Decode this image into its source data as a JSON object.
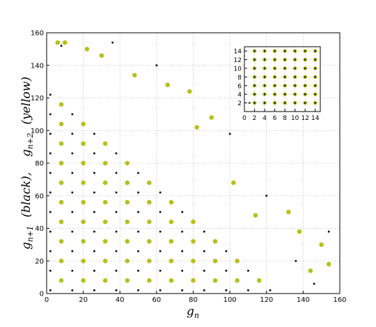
{
  "chart_data": [
    {
      "type": "scatter",
      "xlim": [
        0,
        160
      ],
      "ylim": [
        0,
        160
      ],
      "xticks": [
        0,
        20,
        40,
        60,
        80,
        100,
        120,
        140,
        160
      ],
      "yticks": [
        0,
        20,
        40,
        60,
        80,
        100,
        120,
        140,
        160
      ],
      "grid": true,
      "x_label": {
        "base": "g",
        "sub": "n"
      },
      "y_label": [
        {
          "base": "g",
          "sub": "n+1",
          "note": "(black),"
        },
        {
          "base": "g",
          "sub": "n+2",
          "note": "(yellow)"
        }
      ],
      "series": [
        {
          "name": "g_{n+2}",
          "color": "#b8bf1a",
          "marker": "circle",
          "x": [
            8,
            8,
            8,
            8,
            8,
            8,
            8,
            8,
            8,
            8,
            20,
            20,
            20,
            20,
            20,
            20,
            20,
            20,
            20,
            32,
            32,
            32,
            32,
            32,
            32,
            32,
            32,
            44,
            44,
            44,
            44,
            44,
            44,
            44,
            56,
            56,
            56,
            56,
            56,
            56,
            68,
            68,
            68,
            68,
            68,
            80,
            80,
            80,
            80,
            92,
            92,
            92,
            104,
            104,
            116,
            6,
            10,
            22,
            30,
            48,
            66,
            78,
            82,
            90,
            102,
            114,
            132,
            138,
            150,
            154,
            144
          ],
          "y": [
            8,
            20,
            32,
            44,
            56,
            68,
            80,
            92,
            104,
            116,
            8,
            20,
            32,
            44,
            56,
            68,
            80,
            92,
            104,
            8,
            20,
            32,
            44,
            56,
            68,
            80,
            92,
            8,
            20,
            32,
            44,
            56,
            68,
            80,
            8,
            20,
            32,
            44,
            56,
            68,
            8,
            20,
            32,
            44,
            56,
            8,
            20,
            32,
            44,
            8,
            20,
            32,
            8,
            20,
            8,
            154,
            154,
            150,
            146,
            134,
            128,
            124,
            102,
            108,
            68,
            48,
            50,
            38,
            30,
            18,
            14
          ]
        },
        {
          "name": "g_{n+1}",
          "color": "#000000",
          "marker": "square",
          "x": [
            2,
            2,
            2,
            2,
            2,
            2,
            2,
            2,
            2,
            2,
            2,
            14,
            14,
            14,
            14,
            14,
            14,
            14,
            14,
            14,
            14,
            26,
            26,
            26,
            26,
            26,
            26,
            26,
            26,
            26,
            38,
            38,
            38,
            38,
            38,
            38,
            38,
            38,
            50,
            50,
            50,
            50,
            50,
            50,
            50,
            62,
            62,
            62,
            62,
            62,
            62,
            74,
            74,
            74,
            74,
            74,
            86,
            86,
            86,
            86,
            98,
            98,
            98,
            110,
            110,
            122,
            36,
            60,
            100,
            120,
            154,
            146,
            136,
            8
          ],
          "y": [
            2,
            14,
            26,
            38,
            50,
            62,
            74,
            86,
            98,
            110,
            122,
            2,
            14,
            26,
            38,
            50,
            62,
            74,
            86,
            98,
            110,
            2,
            14,
            26,
            38,
            50,
            62,
            74,
            86,
            98,
            2,
            14,
            26,
            38,
            50,
            62,
            74,
            86,
            2,
            14,
            26,
            38,
            50,
            62,
            74,
            2,
            14,
            26,
            38,
            50,
            62,
            2,
            14,
            26,
            38,
            50,
            2,
            14,
            26,
            38,
            2,
            14,
            26,
            2,
            14,
            2,
            154,
            140,
            98,
            60,
            38,
            6,
            20,
            152
          ]
        }
      ]
    },
    {
      "type": "scatter",
      "xlim": [
        0,
        15
      ],
      "ylim": [
        0,
        15
      ],
      "xticks": [
        0,
        2,
        4,
        6,
        8,
        10,
        12,
        14
      ],
      "yticks": [
        2,
        4,
        6,
        8,
        10,
        12,
        14
      ],
      "grid": true,
      "series": [
        {
          "name": "g_{n+2}",
          "color": "#b8bf1a",
          "marker": "circle",
          "x": [
            2,
            2,
            2,
            2,
            2,
            2,
            2,
            4,
            4,
            4,
            4,
            4,
            4,
            4,
            6,
            6,
            6,
            6,
            6,
            6,
            6,
            8,
            8,
            8,
            8,
            8,
            8,
            8,
            10,
            10,
            10,
            10,
            10,
            10,
            10,
            12,
            12,
            12,
            12,
            12,
            12,
            12,
            14,
            14,
            14,
            14,
            14,
            14,
            14
          ],
          "y": [
            2,
            4,
            6,
            8,
            10,
            12,
            14,
            2,
            4,
            6,
            8,
            10,
            12,
            14,
            2,
            4,
            6,
            8,
            10,
            12,
            14,
            2,
            4,
            6,
            8,
            10,
            12,
            14,
            2,
            4,
            6,
            8,
            10,
            12,
            14,
            2,
            4,
            6,
            8,
            10,
            12,
            14,
            2,
            4,
            6,
            8,
            10,
            12,
            14
          ]
        },
        {
          "name": "g_{n+1}",
          "color": "#000000",
          "marker": "square",
          "x": [
            1,
            2,
            2,
            2,
            2,
            2,
            2,
            2,
            4,
            4,
            4,
            4,
            4,
            4,
            4,
            6,
            6,
            6,
            6,
            6,
            6,
            6,
            8,
            8,
            8,
            8,
            8,
            8,
            8,
            10,
            10,
            10,
            10,
            10,
            10,
            10,
            12,
            12,
            12,
            12,
            12,
            12,
            12,
            14,
            14,
            14,
            14,
            14,
            14,
            14
          ],
          "y": [
            2,
            2,
            4,
            6,
            8,
            10,
            12,
            14,
            2,
            4,
            6,
            8,
            10,
            12,
            14,
            2,
            4,
            6,
            8,
            10,
            12,
            14,
            2,
            4,
            6,
            8,
            10,
            12,
            14,
            2,
            4,
            6,
            8,
            10,
            12,
            14,
            2,
            4,
            6,
            8,
            10,
            12,
            14,
            2,
            4,
            6,
            8,
            10,
            12,
            14
          ]
        }
      ]
    }
  ]
}
